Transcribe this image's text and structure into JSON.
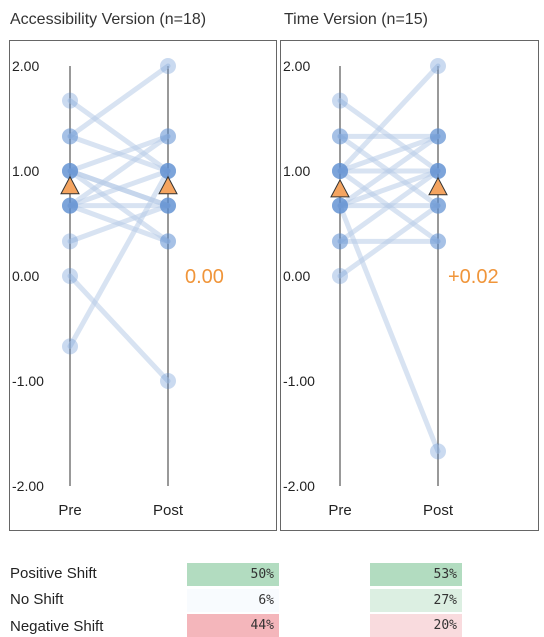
{
  "colors": {
    "line": "#b8cce8",
    "dot": "#5b8bd0",
    "triangle": "#f4a460",
    "delta_text": "#f0953a",
    "axis": "#333333",
    "frame": "#666666"
  },
  "chart_data": [
    {
      "type": "slope",
      "title": "Accessibility Version (n=18)",
      "categories": [
        "Pre",
        "Post"
      ],
      "y_ticks": [
        "2.00",
        "1.00",
        "0.00",
        "-1.00",
        "-2.00"
      ],
      "ylim": [
        -2,
        2
      ],
      "grid": false,
      "pairs": [
        [
          1.67,
          1.0
        ],
        [
          1.33,
          2.0
        ],
        [
          1.33,
          1.0
        ],
        [
          1.0,
          1.33
        ],
        [
          1.0,
          0.67
        ],
        [
          1.0,
          0.33
        ],
        [
          0.67,
          1.33
        ],
        [
          0.67,
          0.67
        ],
        [
          0.67,
          0.33
        ],
        [
          0.67,
          1.0
        ],
        [
          0.33,
          0.67
        ],
        [
          0.0,
          -1.0
        ],
        [
          -0.67,
          1.0
        ],
        [
          1.0,
          0.67
        ]
      ],
      "mean_pre": 0.85,
      "mean_post": 0.85,
      "delta_label": "0.00"
    },
    {
      "type": "slope",
      "title": "Time Version (n=15)",
      "categories": [
        "Pre",
        "Post"
      ],
      "y_ticks": [
        "2.00",
        "1.00",
        "0.00",
        "-1.00",
        "-2.00"
      ],
      "ylim": [
        -2,
        2
      ],
      "grid": false,
      "pairs": [
        [
          1.67,
          1.0
        ],
        [
          1.33,
          1.33
        ],
        [
          1.0,
          2.0
        ],
        [
          1.0,
          1.33
        ],
        [
          1.0,
          1.0
        ],
        [
          1.0,
          0.33
        ],
        [
          0.67,
          1.0
        ],
        [
          0.67,
          0.67
        ],
        [
          0.67,
          1.33
        ],
        [
          0.33,
          0.33
        ],
        [
          0.33,
          1.0
        ],
        [
          0.0,
          0.67
        ],
        [
          0.67,
          -1.67
        ],
        [
          1.33,
          0.67
        ]
      ],
      "mean_pre": 0.82,
      "mean_post": 0.84,
      "delta_label": "+0.02"
    }
  ],
  "summary": {
    "rows": [
      {
        "label": "Positive Shift",
        "values": [
          "50%",
          "53%"
        ],
        "colors": [
          "#b2dcc0",
          "#b2dcc0"
        ]
      },
      {
        "label": "No Shift",
        "values": [
          "6%",
          "27%"
        ],
        "colors": [
          "#f8fbfe",
          "#dcefe2"
        ]
      },
      {
        "label": "Negative Shift",
        "values": [
          "44%",
          "20%"
        ],
        "colors": [
          "#f4b6bb",
          "#f9dbde"
        ]
      }
    ]
  }
}
